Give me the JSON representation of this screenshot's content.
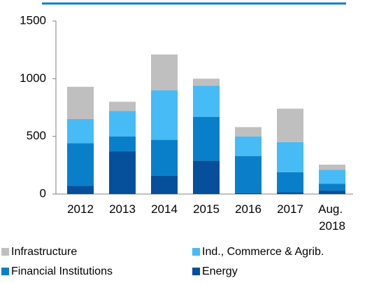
{
  "chart_data": {
    "type": "stacked_bar",
    "categories": [
      "2012",
      "2013",
      "2014",
      "2015",
      "2016",
      "2017",
      "Aug. 2018"
    ],
    "series": [
      {
        "name": "Energy",
        "color": "#064f9a",
        "values": [
          70,
          370,
          160,
          290,
          10,
          15,
          30
        ]
      },
      {
        "name": "Financial Institutions",
        "color": "#0a7fc9",
        "values": [
          370,
          130,
          310,
          380,
          320,
          175,
          60
        ]
      },
      {
        "name": "Ind., Commerce & Agrib.",
        "color": "#46bbf5",
        "values": [
          210,
          220,
          430,
          270,
          170,
          260,
          120
        ]
      },
      {
        "name": "Infrastructure",
        "color": "#bfbfbf",
        "values": [
          280,
          80,
          310,
          60,
          80,
          290,
          45
        ]
      }
    ],
    "ylim": [
      0,
      1500
    ],
    "yticks": [
      0,
      500,
      1000,
      1500
    ],
    "grid": false
  }
}
